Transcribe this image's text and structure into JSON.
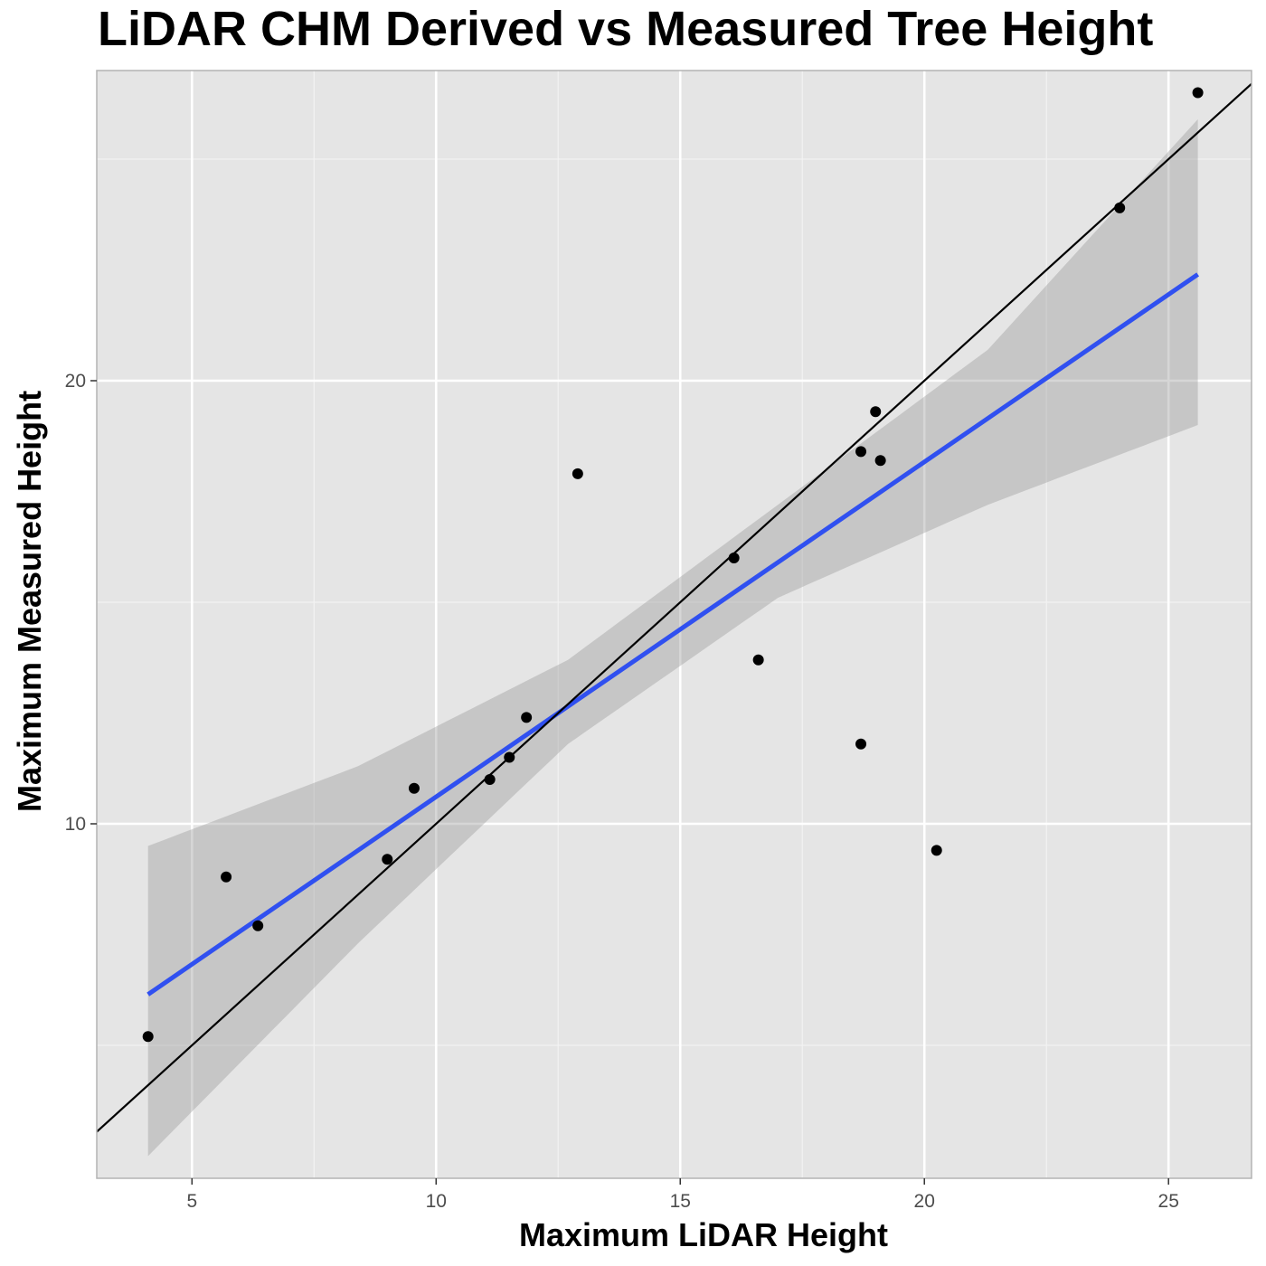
{
  "chart_data": {
    "type": "scatter",
    "title": "LiDAR CHM Derived vs Measured Tree Height",
    "xlabel": "Maximum LiDAR Height",
    "ylabel": "Maximum Measured Height",
    "xlim": [
      3.05,
      26.7
    ],
    "ylim": [
      2.0,
      27.0
    ],
    "x_ticks": [
      5,
      10,
      15,
      20,
      25
    ],
    "y_ticks": [
      10,
      20
    ],
    "grid": true,
    "points": [
      {
        "x": 4.1,
        "y": 5.2
      },
      {
        "x": 5.7,
        "y": 8.8
      },
      {
        "x": 6.35,
        "y": 7.7
      },
      {
        "x": 9.0,
        "y": 9.2
      },
      {
        "x": 9.55,
        "y": 10.8
      },
      {
        "x": 11.1,
        "y": 11.0
      },
      {
        "x": 11.5,
        "y": 11.5
      },
      {
        "x": 11.85,
        "y": 12.4
      },
      {
        "x": 12.9,
        "y": 17.9
      },
      {
        "x": 16.1,
        "y": 16.0
      },
      {
        "x": 16.6,
        "y": 13.7
      },
      {
        "x": 18.7,
        "y": 18.4
      },
      {
        "x": 18.7,
        "y": 11.8
      },
      {
        "x": 19.0,
        "y": 19.3
      },
      {
        "x": 19.1,
        "y": 18.2
      },
      {
        "x": 20.25,
        "y": 9.4
      },
      {
        "x": 24.0,
        "y": 23.9
      },
      {
        "x": 25.6,
        "y": 26.5
      }
    ],
    "reference_line": {
      "type": "1:1",
      "color": "#000000"
    },
    "fit_line": {
      "type": "linear",
      "color": "#3050F0",
      "x": [
        4.1,
        25.6
      ],
      "y": [
        6.15,
        22.4
      ]
    },
    "confidence_band": {
      "color": "#999999",
      "x": [
        4.1,
        8.4,
        12.7,
        17.0,
        21.3,
        25.6
      ],
      "lower": [
        2.5,
        7.3,
        11.8,
        15.1,
        17.2,
        19.0
      ],
      "upper": [
        9.5,
        11.3,
        13.7,
        17.2,
        20.7,
        25.9
      ]
    },
    "panel_color": "#E5E5E5",
    "point_color": "#000000"
  }
}
